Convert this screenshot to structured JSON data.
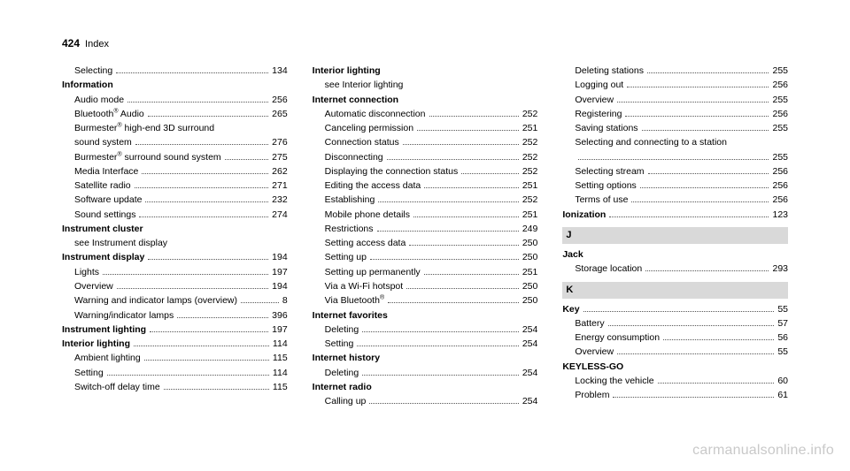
{
  "page_number": "424",
  "section": "Index",
  "watermark": "carmanualsonline.info",
  "columns": [
    {
      "items": [
        {
          "type": "sub",
          "label": "Selecting",
          "page": "134"
        },
        {
          "type": "head",
          "label": "Information"
        },
        {
          "type": "sub",
          "label": "Audio mode",
          "page": "256"
        },
        {
          "type": "sub",
          "label": "Bluetooth<sup>®</sup> Audio",
          "page": "265"
        },
        {
          "type": "sub-noline",
          "label": "Burmester<sup>®</sup> high-end 3D surround"
        },
        {
          "type": "sub",
          "label": "sound system",
          "page": "276"
        },
        {
          "type": "sub",
          "label": "Burmester<sup>®</sup> surround sound system",
          "page": "275"
        },
        {
          "type": "sub",
          "label": "Media Interface",
          "page": "262"
        },
        {
          "type": "sub",
          "label": "Satellite radio",
          "page": "271"
        },
        {
          "type": "sub",
          "label": "Software update",
          "page": "232"
        },
        {
          "type": "sub",
          "label": "Sound settings",
          "page": "274"
        },
        {
          "type": "head",
          "label": "Instrument cluster"
        },
        {
          "type": "sub-plain",
          "label": "see Instrument display"
        },
        {
          "type": "headentry",
          "label": "Instrument display",
          "page": "194"
        },
        {
          "type": "sub",
          "label": "Lights",
          "page": "197"
        },
        {
          "type": "sub",
          "label": "Overview",
          "page": "194"
        },
        {
          "type": "sub",
          "label": "Warning and indicator lamps (overview)",
          "page": "8"
        },
        {
          "type": "sub",
          "label": "Warning/indicator lamps",
          "page": "396"
        },
        {
          "type": "headentry",
          "label": "Instrument lighting",
          "page": "197"
        },
        {
          "type": "headentry",
          "label": "Interior lighting",
          "page": "114"
        },
        {
          "type": "sub",
          "label": "Ambient lighting",
          "page": "115"
        },
        {
          "type": "sub",
          "label": "Setting",
          "page": "114"
        },
        {
          "type": "sub",
          "label": "Switch-off delay time",
          "page": "115"
        }
      ]
    },
    {
      "items": [
        {
          "type": "head",
          "label": "Interior lighting"
        },
        {
          "type": "sub-plain",
          "label": "see Interior lighting"
        },
        {
          "type": "head",
          "label": "Internet connection"
        },
        {
          "type": "sub",
          "label": "Automatic disconnection",
          "page": "252"
        },
        {
          "type": "sub",
          "label": "Canceling permission",
          "page": "251"
        },
        {
          "type": "sub",
          "label": "Connection status",
          "page": "252"
        },
        {
          "type": "sub",
          "label": "Disconnecting",
          "page": "252"
        },
        {
          "type": "sub",
          "label": "Displaying the connection status",
          "page": "252"
        },
        {
          "type": "sub",
          "label": "Editing the access data",
          "page": "251"
        },
        {
          "type": "sub",
          "label": "Establishing",
          "page": "252"
        },
        {
          "type": "sub",
          "label": "Mobile phone details",
          "page": "251"
        },
        {
          "type": "sub",
          "label": "Restrictions",
          "page": "249"
        },
        {
          "type": "sub",
          "label": "Setting access data",
          "page": "250"
        },
        {
          "type": "sub",
          "label": "Setting up",
          "page": "250"
        },
        {
          "type": "sub",
          "label": "Setting up permanently",
          "page": "251"
        },
        {
          "type": "sub",
          "label": "Via a Wi-Fi hotspot",
          "page": "250"
        },
        {
          "type": "sub",
          "label": "Via Bluetooth<sup>®</sup>",
          "page": "250"
        },
        {
          "type": "head",
          "label": "Internet favorites"
        },
        {
          "type": "sub",
          "label": "Deleting",
          "page": "254"
        },
        {
          "type": "sub",
          "label": "Setting",
          "page": "254"
        },
        {
          "type": "head",
          "label": "Internet history"
        },
        {
          "type": "sub",
          "label": "Deleting",
          "page": "254"
        },
        {
          "type": "head",
          "label": "Internet radio"
        },
        {
          "type": "sub",
          "label": "Calling up",
          "page": "254"
        }
      ]
    },
    {
      "items": [
        {
          "type": "sub",
          "label": "Deleting stations",
          "page": "255"
        },
        {
          "type": "sub",
          "label": "Logging out",
          "page": "256"
        },
        {
          "type": "sub",
          "label": "Overview",
          "page": "255"
        },
        {
          "type": "sub",
          "label": "Registering",
          "page": "256"
        },
        {
          "type": "sub",
          "label": "Saving stations",
          "page": "255"
        },
        {
          "type": "sub-noline",
          "label": "Selecting and connecting to a station"
        },
        {
          "type": "cont",
          "label": "",
          "page": "255"
        },
        {
          "type": "sub",
          "label": "Selecting stream",
          "page": "256"
        },
        {
          "type": "sub",
          "label": "Setting options",
          "page": "256"
        },
        {
          "type": "sub",
          "label": "Terms of use",
          "page": "256"
        },
        {
          "type": "headentry",
          "label": "Ionization",
          "page": "123"
        },
        {
          "type": "letter",
          "label": "J"
        },
        {
          "type": "head",
          "label": "Jack"
        },
        {
          "type": "sub",
          "label": "Storage location",
          "page": "293"
        },
        {
          "type": "letter",
          "label": "K"
        },
        {
          "type": "headentry",
          "label": "Key",
          "page": "55"
        },
        {
          "type": "sub",
          "label": "Battery",
          "page": "57"
        },
        {
          "type": "sub",
          "label": "Energy consumption",
          "page": "56"
        },
        {
          "type": "sub",
          "label": "Overview",
          "page": "55"
        },
        {
          "type": "head",
          "label": "KEYLESS-GO"
        },
        {
          "type": "sub",
          "label": "Locking the vehicle",
          "page": "60"
        },
        {
          "type": "sub",
          "label": "Problem",
          "page": "61"
        }
      ]
    }
  ]
}
